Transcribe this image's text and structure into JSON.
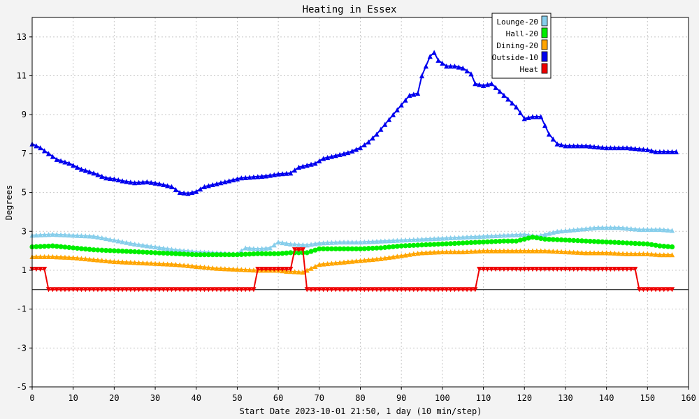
{
  "chart_data": {
    "type": "line",
    "title": "Heating in Essex",
    "xlabel": "Start Date 2023-10-01 21:50, 1 day (10 min/step)",
    "ylabel": "Degrees",
    "xlim": [
      0,
      160
    ],
    "ylim": [
      -5,
      14
    ],
    "xticks": [
      0,
      10,
      20,
      30,
      40,
      50,
      60,
      70,
      80,
      90,
      100,
      110,
      120,
      130,
      140,
      150,
      160
    ],
    "yticks": [
      -5,
      -3,
      -1,
      1,
      3,
      5,
      7,
      9,
      11,
      13
    ],
    "grid": true,
    "legend_position": "top-right",
    "zero_line": true,
    "series": [
      {
        "name": "Lounge-20",
        "color": "#87ceeb",
        "marker": "triangle-up",
        "points": [
          [
            0,
            2.8
          ],
          [
            5,
            2.85
          ],
          [
            10,
            2.8
          ],
          [
            15,
            2.75
          ],
          [
            20,
            2.55
          ],
          [
            25,
            2.35
          ],
          [
            30,
            2.2
          ],
          [
            35,
            2.05
          ],
          [
            40,
            1.95
          ],
          [
            45,
            1.9
          ],
          [
            50,
            1.85
          ],
          [
            52,
            2.15
          ],
          [
            55,
            2.1
          ],
          [
            58,
            2.15
          ],
          [
            60,
            2.45
          ],
          [
            63,
            2.35
          ],
          [
            67,
            2.3
          ],
          [
            70,
            2.4
          ],
          [
            75,
            2.45
          ],
          [
            80,
            2.45
          ],
          [
            85,
            2.5
          ],
          [
            90,
            2.55
          ],
          [
            95,
            2.6
          ],
          [
            100,
            2.65
          ],
          [
            105,
            2.7
          ],
          [
            110,
            2.75
          ],
          [
            115,
            2.8
          ],
          [
            120,
            2.85
          ],
          [
            123,
            2.75
          ],
          [
            128,
            3.0
          ],
          [
            133,
            3.1
          ],
          [
            138,
            3.2
          ],
          [
            143,
            3.2
          ],
          [
            148,
            3.1
          ],
          [
            153,
            3.1
          ],
          [
            156,
            3.05
          ]
        ]
      },
      {
        "name": "Hall-20",
        "color": "#00ee00",
        "marker": "circle",
        "points": [
          [
            0,
            2.2
          ],
          [
            5,
            2.25
          ],
          [
            10,
            2.15
          ],
          [
            15,
            2.05
          ],
          [
            20,
            2.0
          ],
          [
            25,
            1.95
          ],
          [
            30,
            1.9
          ],
          [
            35,
            1.85
          ],
          [
            40,
            1.8
          ],
          [
            45,
            1.8
          ],
          [
            50,
            1.8
          ],
          [
            55,
            1.85
          ],
          [
            60,
            1.85
          ],
          [
            63,
            1.9
          ],
          [
            67,
            1.9
          ],
          [
            70,
            2.1
          ],
          [
            75,
            2.1
          ],
          [
            80,
            2.1
          ],
          [
            85,
            2.15
          ],
          [
            90,
            2.25
          ],
          [
            95,
            2.3
          ],
          [
            100,
            2.35
          ],
          [
            105,
            2.4
          ],
          [
            110,
            2.45
          ],
          [
            115,
            2.5
          ],
          [
            118,
            2.5
          ],
          [
            122,
            2.7
          ],
          [
            125,
            2.6
          ],
          [
            130,
            2.55
          ],
          [
            135,
            2.5
          ],
          [
            140,
            2.45
          ],
          [
            145,
            2.4
          ],
          [
            150,
            2.35
          ],
          [
            153,
            2.25
          ],
          [
            156,
            2.2
          ]
        ]
      },
      {
        "name": "Dining-20",
        "color": "#ffa500",
        "marker": "triangle-up",
        "points": [
          [
            0,
            1.7
          ],
          [
            5,
            1.7
          ],
          [
            10,
            1.65
          ],
          [
            15,
            1.55
          ],
          [
            20,
            1.45
          ],
          [
            25,
            1.4
          ],
          [
            30,
            1.35
          ],
          [
            35,
            1.3
          ],
          [
            40,
            1.2
          ],
          [
            45,
            1.1
          ],
          [
            50,
            1.05
          ],
          [
            55,
            1.0
          ],
          [
            60,
            1.0
          ],
          [
            62,
            0.95
          ],
          [
            66,
            0.9
          ],
          [
            68,
            1.1
          ],
          [
            70,
            1.3
          ],
          [
            75,
            1.4
          ],
          [
            80,
            1.5
          ],
          [
            85,
            1.6
          ],
          [
            90,
            1.75
          ],
          [
            93,
            1.85
          ],
          [
            95,
            1.9
          ],
          [
            100,
            1.95
          ],
          [
            105,
            1.95
          ],
          [
            110,
            2.0
          ],
          [
            115,
            2.0
          ],
          [
            120,
            2.0
          ],
          [
            125,
            2.0
          ],
          [
            130,
            1.95
          ],
          [
            135,
            1.9
          ],
          [
            140,
            1.9
          ],
          [
            145,
            1.85
          ],
          [
            150,
            1.85
          ],
          [
            153,
            1.8
          ],
          [
            156,
            1.8
          ]
        ]
      },
      {
        "name": "Outside-10",
        "color": "#0000ee",
        "marker": "triangle-up",
        "points": [
          [
            0,
            7.5
          ],
          [
            2,
            7.3
          ],
          [
            4,
            7.0
          ],
          [
            6,
            6.7
          ],
          [
            9,
            6.5
          ],
          [
            12,
            6.2
          ],
          [
            15,
            6.0
          ],
          [
            18,
            5.75
          ],
          [
            20,
            5.7
          ],
          [
            22,
            5.6
          ],
          [
            25,
            5.5
          ],
          [
            28,
            5.55
          ],
          [
            31,
            5.45
          ],
          [
            34,
            5.3
          ],
          [
            36,
            5.0
          ],
          [
            38,
            4.95
          ],
          [
            40,
            5.05
          ],
          [
            42,
            5.3
          ],
          [
            45,
            5.45
          ],
          [
            48,
            5.6
          ],
          [
            51,
            5.75
          ],
          [
            54,
            5.8
          ],
          [
            57,
            5.85
          ],
          [
            60,
            5.95
          ],
          [
            63,
            6.0
          ],
          [
            65,
            6.3
          ],
          [
            67,
            6.4
          ],
          [
            69,
            6.5
          ],
          [
            71,
            6.75
          ],
          [
            74,
            6.9
          ],
          [
            77,
            7.05
          ],
          [
            80,
            7.3
          ],
          [
            82,
            7.6
          ],
          [
            84,
            8.0
          ],
          [
            86,
            8.5
          ],
          [
            88,
            9.0
          ],
          [
            90,
            9.5
          ],
          [
            92,
            10.0
          ],
          [
            94,
            10.1
          ],
          [
            95,
            11.0
          ],
          [
            96,
            11.5
          ],
          [
            97,
            12.0
          ],
          [
            98,
            12.2
          ],
          [
            99,
            11.8
          ],
          [
            101,
            11.5
          ],
          [
            103,
            11.5
          ],
          [
            105,
            11.4
          ],
          [
            107,
            11.1
          ],
          [
            108,
            10.6
          ],
          [
            110,
            10.5
          ],
          [
            112,
            10.6
          ],
          [
            114,
            10.2
          ],
          [
            116,
            9.8
          ],
          [
            118,
            9.4
          ],
          [
            120,
            8.8
          ],
          [
            122,
            8.9
          ],
          [
            124,
            8.9
          ],
          [
            126,
            8.0
          ],
          [
            128,
            7.5
          ],
          [
            130,
            7.4
          ],
          [
            135,
            7.4
          ],
          [
            140,
            7.3
          ],
          [
            145,
            7.3
          ],
          [
            150,
            7.2
          ],
          [
            152,
            7.1
          ],
          [
            155,
            7.1
          ],
          [
            157,
            7.1
          ]
        ]
      },
      {
        "name": "Heat",
        "color": "#ee0000",
        "marker": "triangle-down",
        "points": [
          [
            0,
            1.05
          ],
          [
            3,
            1.05
          ],
          [
            4,
            0.0
          ],
          [
            54,
            0.0
          ],
          [
            55,
            1.05
          ],
          [
            63,
            1.05
          ],
          [
            64,
            2.05
          ],
          [
            66,
            2.05
          ],
          [
            67,
            0.0
          ],
          [
            108,
            0.0
          ],
          [
            109,
            1.05
          ],
          [
            147,
            1.05
          ],
          [
            148,
            0.0
          ],
          [
            156,
            0.0
          ]
        ]
      }
    ]
  }
}
